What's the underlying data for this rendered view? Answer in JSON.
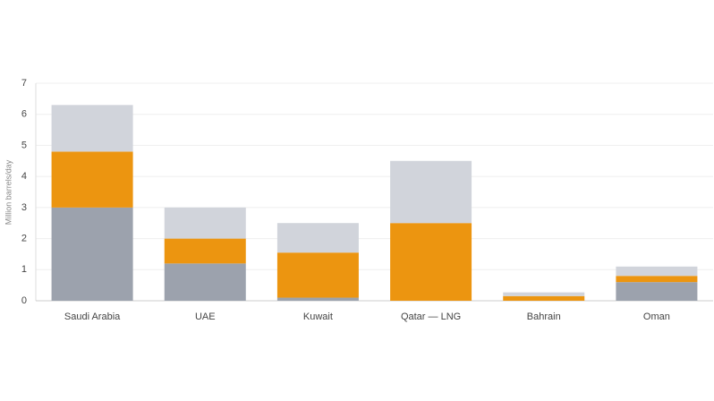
{
  "chart_data": {
    "type": "stacked_bar",
    "ylabel": "Million barrels/day",
    "categories": [
      "Saudi Arabia",
      "UAE",
      "Kuwait",
      "Qatar — LNG",
      "Bahrain",
      "Oman"
    ],
    "series": [
      {
        "color": "#9ca2ad",
        "values": [
          3.0,
          1.2,
          0.1,
          0,
          0,
          0.6
        ]
      },
      {
        "color": "#ec9510",
        "values": [
          1.8,
          0.8,
          1.45,
          2.5,
          0.15,
          0.2
        ]
      },
      {
        "color": "#d1d4db",
        "values": [
          1.5,
          1.0,
          0.95,
          2.0,
          0.12,
          0.3
        ]
      }
    ],
    "ylim": [
      0,
      7
    ],
    "yticks": [
      0,
      1,
      2,
      3,
      4,
      5,
      6,
      7
    ],
    "grid": true
  }
}
